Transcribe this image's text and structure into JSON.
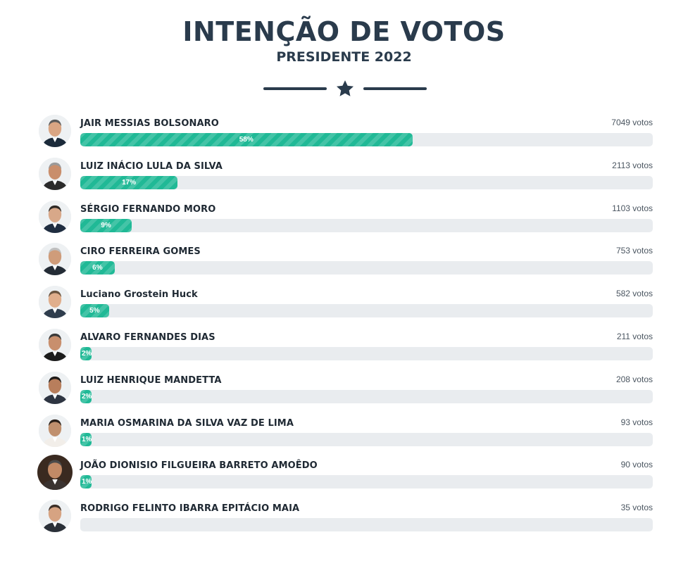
{
  "header": {
    "title": "INTENÇÃO DE VOTOS",
    "subtitle": "PRESIDENTE 2022",
    "divider_icon": "star-icon"
  },
  "colors": {
    "bar_fill": "#20b996",
    "bar_track": "#e9ecef",
    "heading": "#2a3b4c"
  },
  "candidates": [
    {
      "name": "JAIR MESSIAS BOLSONARO",
      "votes": "7049 votos",
      "percent_label": "58%",
      "percent": 58,
      "photo": "candidate-photo-bolsonaro"
    },
    {
      "name": "LUIZ INÁCIO LULA DA SILVA",
      "votes": "2113 votos",
      "percent_label": "17%",
      "percent": 17,
      "photo": "candidate-photo-lula"
    },
    {
      "name": "SÉRGIO FERNANDO MORO",
      "votes": "1103 votos",
      "percent_label": "9%",
      "percent": 9,
      "photo": "candidate-photo-moro"
    },
    {
      "name": "CIRO FERREIRA GOMES",
      "votes": "753 votos",
      "percent_label": "6%",
      "percent": 6,
      "photo": "candidate-photo-ciro"
    },
    {
      "name": "Luciano Grostein Huck",
      "votes": "582 votos",
      "percent_label": "5%",
      "percent": 5,
      "photo": "candidate-photo-huck"
    },
    {
      "name": "ALVARO FERNANDES DIAS",
      "votes": "211 votos",
      "percent_label": "2%",
      "percent": 2,
      "photo": "candidate-photo-alvaro"
    },
    {
      "name": "LUIZ HENRIQUE MANDETTA",
      "votes": "208 votos",
      "percent_label": "2%",
      "percent": 2,
      "photo": "candidate-photo-mandetta"
    },
    {
      "name": "MARIA OSMARINA DA SILVA VAZ DE LIMA",
      "votes": "93 votos",
      "percent_label": "1%",
      "percent": 1,
      "photo": "candidate-photo-marina"
    },
    {
      "name": "JOÃO DIONISIO FILGUEIRA BARRETO AMOÊDO",
      "votes": "90 votos",
      "percent_label": "1%",
      "percent": 1,
      "photo": "candidate-photo-amoedo"
    },
    {
      "name": "RODRIGO FELINTO IBARRA EPITÁCIO MAIA",
      "votes": "35 votos",
      "percent_label": "",
      "percent": 0,
      "photo": "candidate-photo-maia"
    }
  ]
}
